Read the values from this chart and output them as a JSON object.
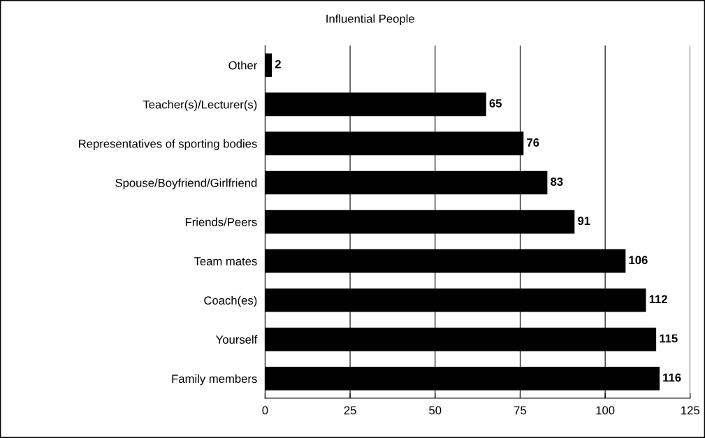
{
  "chart_data": {
    "type": "bar",
    "orientation": "horizontal",
    "title": "Influential People",
    "categories": [
      "Other",
      "Teacher(s)/Lecturer(s)",
      "Representatives of sporting bodies",
      "Spouse/Boyfriend/Girlfriend",
      "Friends/Peers",
      "Team mates",
      "Coach(es)",
      "Yourself",
      "Family members"
    ],
    "values": [
      2,
      65,
      76,
      83,
      91,
      106,
      112,
      115,
      116
    ],
    "color": "#000000",
    "xlim": [
      0,
      125
    ],
    "xticks": [
      0,
      25,
      50,
      75,
      100,
      125
    ],
    "grid": "x",
    "data_labels": true,
    "legend": false
  }
}
